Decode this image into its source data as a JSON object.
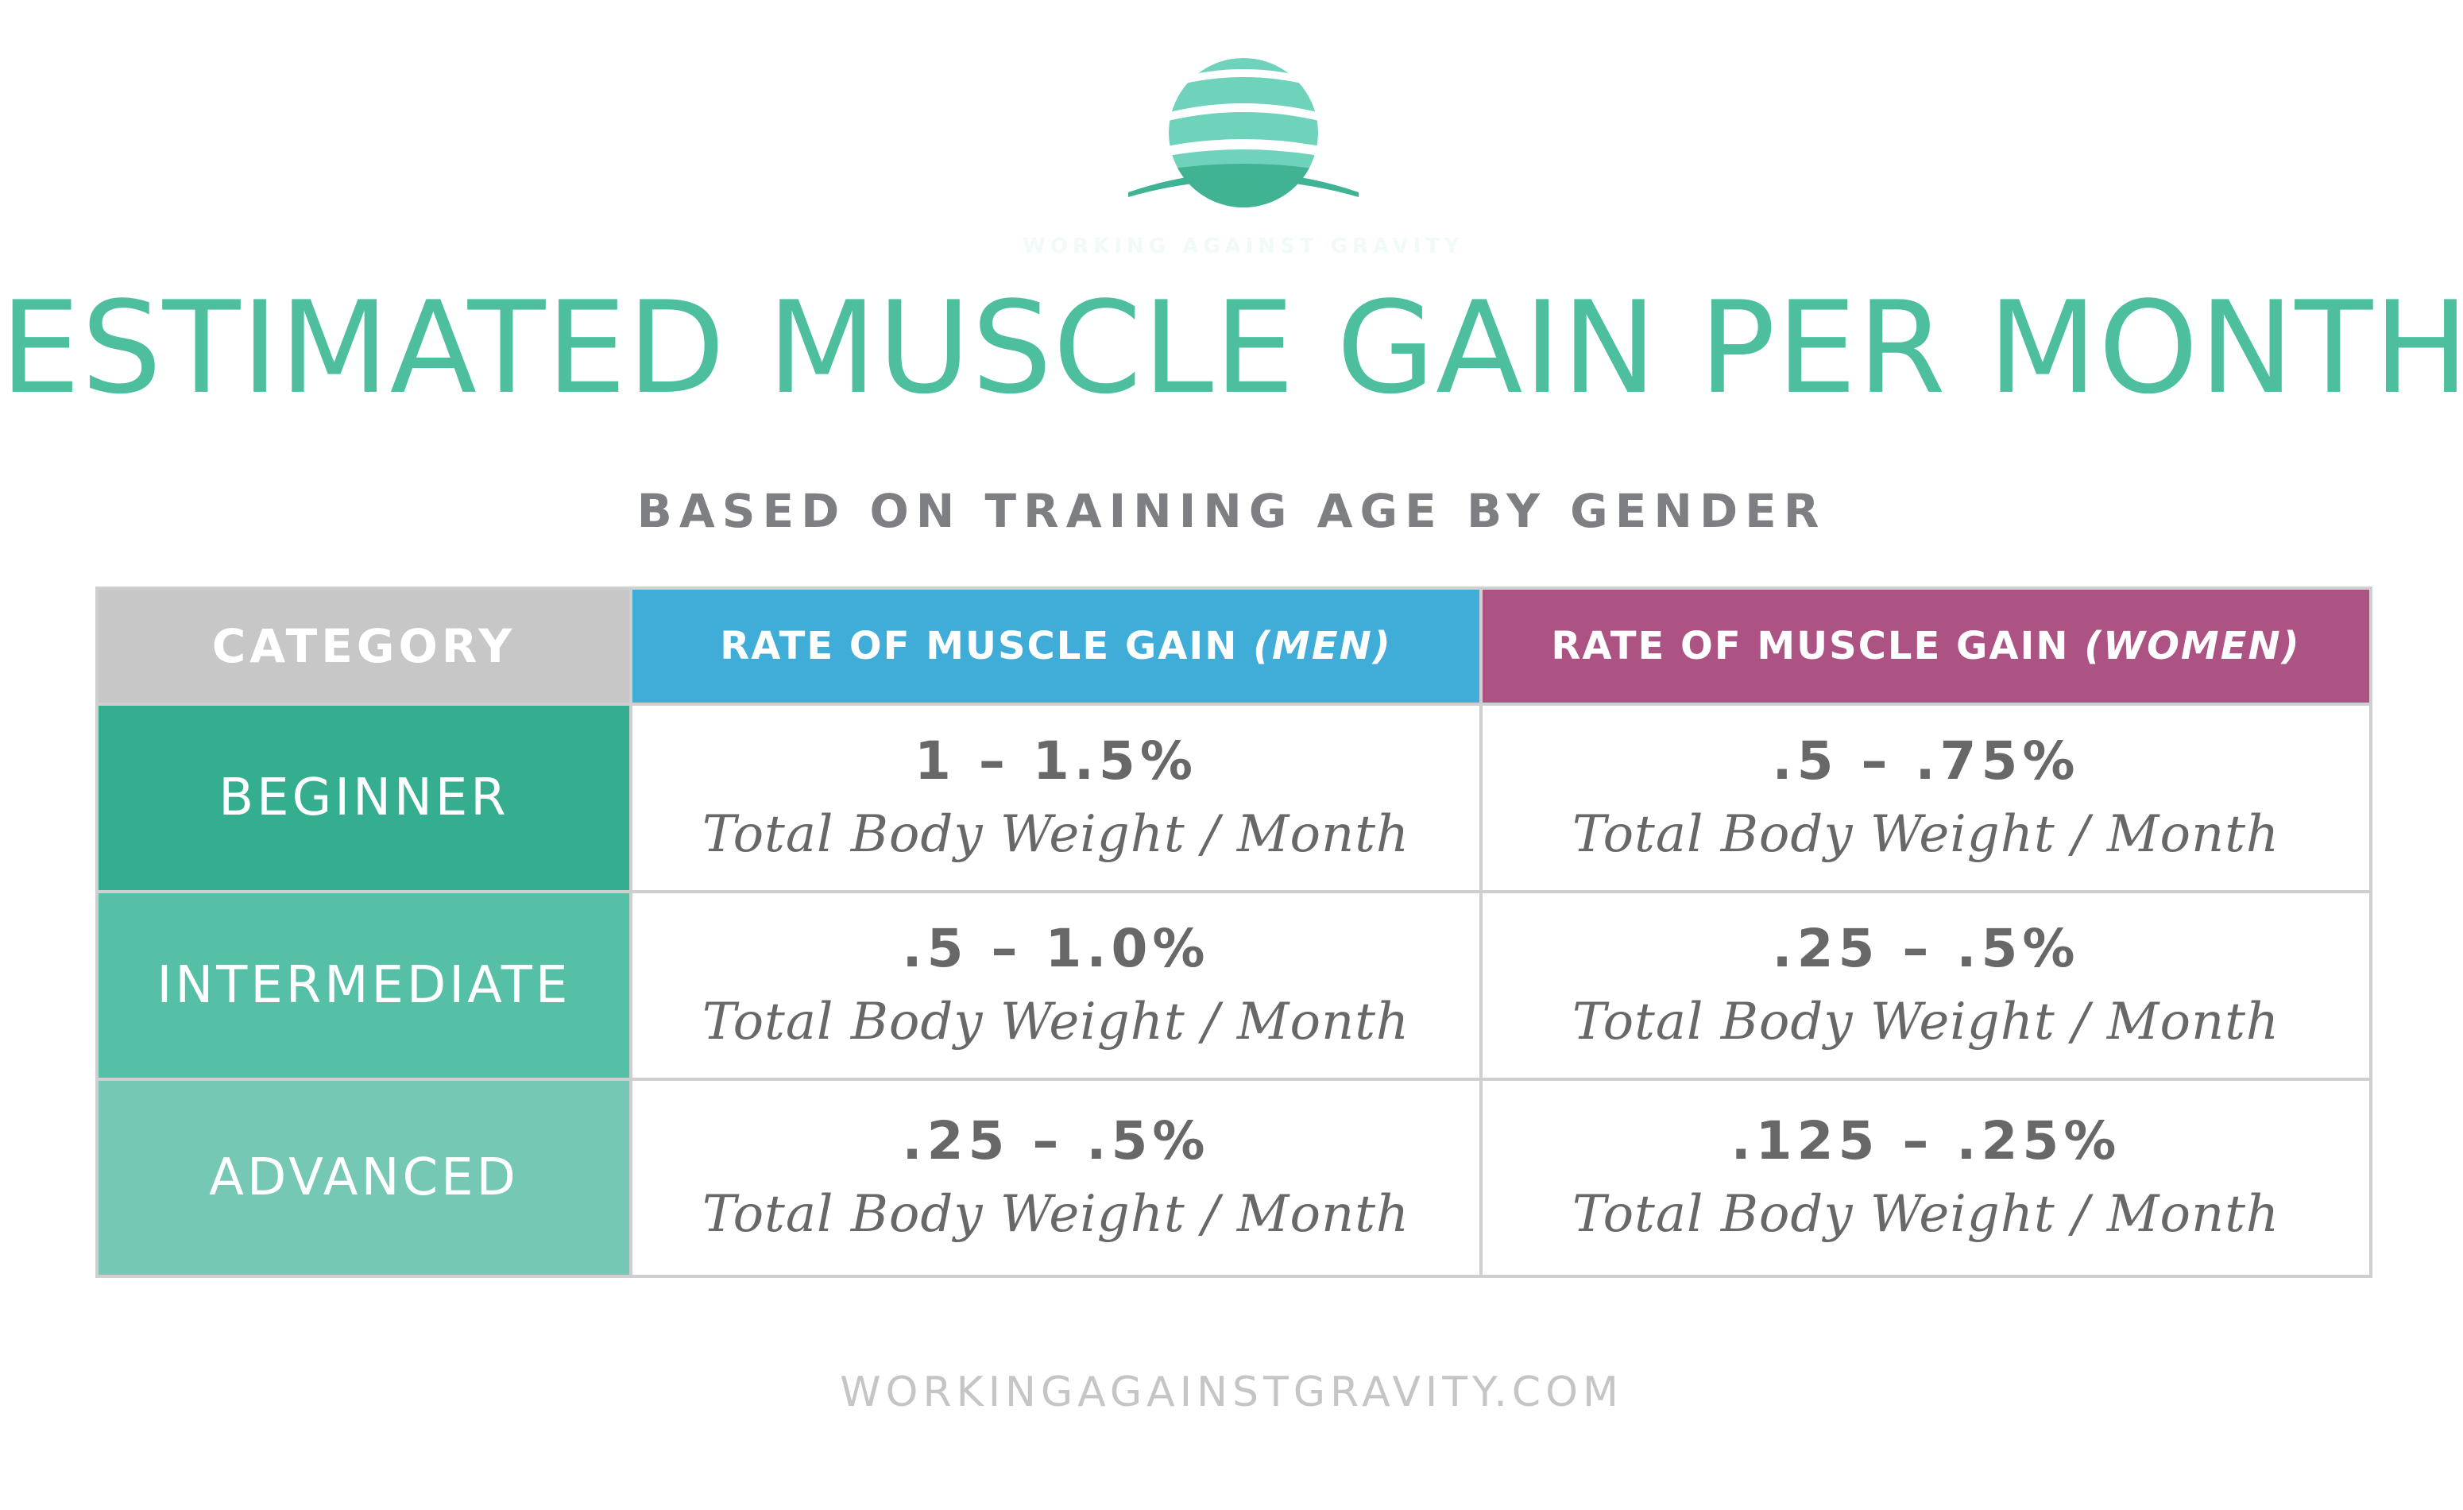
{
  "logo": {
    "icon": "sunset-horizon-logo-icon",
    "tagline": "WORKING AGAINST GRAVITY",
    "colors": {
      "top": "#74d4bd",
      "bottom": "#3fb394"
    }
  },
  "title": "ESTIMATED MUSCLE GAIN PER MONTH",
  "subtitle": "BASED ON TRAINING AGE BY GENDER",
  "table": {
    "headers": {
      "category": "CATEGORY",
      "men_prefix": "RATE OF MUSCLE GAIN ",
      "men_suffix": "(MEN)",
      "women_prefix": "RATE OF MUSCLE GAIN ",
      "women_suffix": "(WOMEN)"
    },
    "rows": [
      {
        "category": "BEGINNER",
        "men_range": "1 – 1.5%",
        "men_unit": "Total Body Weight / Month",
        "women_range": ".5 – .75%",
        "women_unit": "Total Body Weight / Month"
      },
      {
        "category": "INTERMEDIATE",
        "men_range": ".5 – 1.0%",
        "men_unit": "Total Body Weight / Month",
        "women_range": ".25 – .5%",
        "women_unit": "Total Body Weight / Month"
      },
      {
        "category": "ADVANCED",
        "men_range": ".25 – .5%",
        "men_unit": "Total Body Weight / Month",
        "women_range": ".125 – .25%",
        "women_unit": "Total Body Weight / Month"
      }
    ]
  },
  "footer": "WORKINGAGAINSTGRAVITY.COM",
  "colors": {
    "title": "#4dbf9f",
    "men_header": "#40acd8",
    "women_header": "#ad5384",
    "category_header": "#c8c7c8",
    "beginner": "#35ae90",
    "intermediate": "#55c0a6",
    "advanced": "#74c8b4"
  }
}
